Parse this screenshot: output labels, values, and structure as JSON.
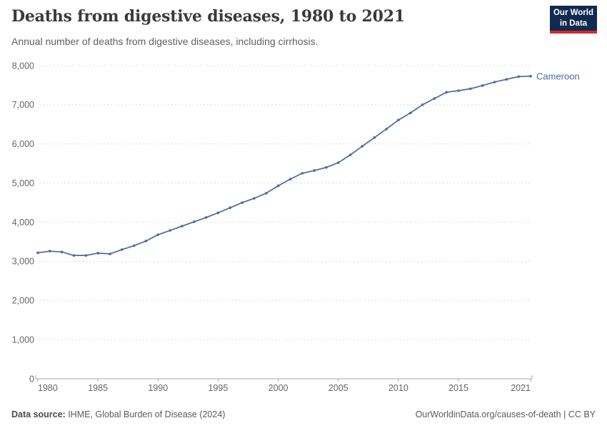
{
  "header": {
    "title": "Deaths from digestive diseases, 1980 to 2021",
    "subtitle": "Annual number of deaths from digestive diseases, including cirrhosis.",
    "logo": {
      "line1": "Our World",
      "line2": "in Data",
      "bg_color": "#102a50",
      "accent_color": "#d42b22"
    }
  },
  "chart_data": {
    "type": "line",
    "title": "Deaths from digestive diseases, 1980 to 2021",
    "xlabel": "",
    "ylabel": "",
    "xlim": [
      1980,
      2021
    ],
    "ylim": [
      0,
      8000
    ],
    "grid": "horizontal-dashed",
    "legend_position": "end-of-line-label",
    "x_ticks": [
      1980,
      1985,
      1990,
      1995,
      2000,
      2005,
      2010,
      2015,
      2021
    ],
    "y_ticks": [
      0,
      1000,
      2000,
      3000,
      4000,
      5000,
      6000,
      7000,
      8000
    ],
    "series": [
      {
        "name": "Cameroon",
        "color": "#4c6a9c",
        "x": [
          1980,
          1981,
          1982,
          1983,
          1984,
          1985,
          1986,
          1987,
          1988,
          1989,
          1990,
          1991,
          1992,
          1993,
          1994,
          1995,
          1996,
          1997,
          1998,
          1999,
          2000,
          2001,
          2002,
          2003,
          2004,
          2005,
          2006,
          2007,
          2008,
          2009,
          2010,
          2011,
          2012,
          2013,
          2014,
          2015,
          2016,
          2017,
          2018,
          2019,
          2020,
          2021
        ],
        "values": [
          3220,
          3260,
          3240,
          3150,
          3150,
          3210,
          3190,
          3300,
          3400,
          3520,
          3680,
          3790,
          3900,
          4010,
          4120,
          4240,
          4370,
          4500,
          4610,
          4740,
          4930,
          5100,
          5250,
          5320,
          5400,
          5520,
          5720,
          5940,
          6160,
          6380,
          6610,
          6790,
          7000,
          7160,
          7320,
          7360,
          7410,
          7490,
          7580,
          7650,
          7720,
          7730
        ]
      }
    ]
  },
  "footer": {
    "datasource_label": "Data source:",
    "datasource_value": " IHME, Global Burden of Disease (2024)",
    "credit": "OurWorldinData.org/causes-of-death | CC BY"
  },
  "colors": {
    "line": "#4c6a9c",
    "gridline": "#dcdcdc",
    "axis": "#a9a9a9",
    "tick_label": "#666666"
  }
}
